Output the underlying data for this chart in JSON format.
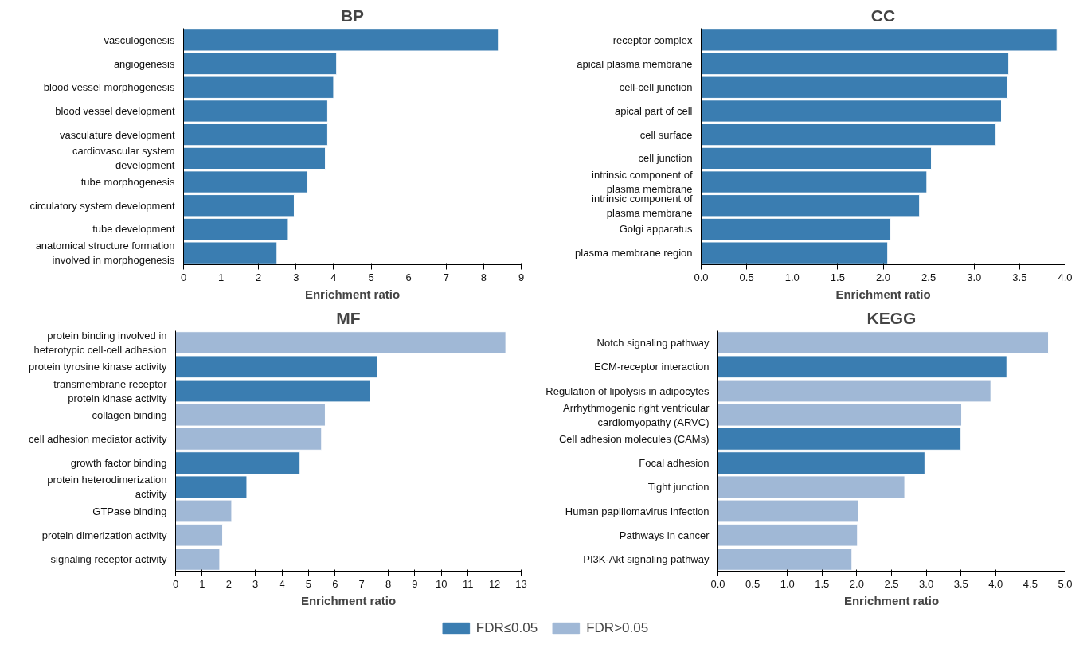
{
  "chart_data": [
    {
      "type": "bar",
      "orientation": "horizontal",
      "title": "BP",
      "xlabel": "Enrichment ratio",
      "categories": [
        "vasculogenesis",
        "angiogenesis",
        "blood vessel morphogenesis",
        "blood vessel development",
        "vasculature development",
        "cardiovascular system\ndevelopment",
        "tube morphogenesis",
        "circulatory system development",
        "tube development",
        "anatomical structure formation\ninvolved in morphogenesis"
      ],
      "series": [
        {
          "color": "#3a7db1",
          "values": [
            8.39,
            4.08,
            4.0,
            3.84,
            3.84,
            3.78,
            3.31,
            2.95,
            2.79,
            2.49
          ]
        }
      ],
      "xlim": [
        0,
        9
      ],
      "xticks": [
        0,
        1,
        2,
        3,
        4,
        5,
        6,
        7,
        8,
        9
      ],
      "grid": false,
      "legend": false
    },
    {
      "type": "bar",
      "orientation": "horizontal",
      "title": "CC",
      "xlabel": "Enrichment ratio",
      "categories": [
        "receptor complex",
        "apical plasma membrane",
        "cell-cell junction",
        "apical part of cell",
        "cell surface",
        "cell junction",
        "intrinsic component of\nplasma membrane",
        "intrinsic component of\nplasma membrane",
        "Golgi apparatus",
        "plasma membrane region"
      ],
      "series": [
        {
          "color": "#3a7db1",
          "values": [
            3.91,
            3.38,
            3.37,
            3.3,
            3.24,
            2.53,
            2.48,
            2.4,
            2.08,
            2.05
          ]
        }
      ],
      "xlim": [
        0,
        4
      ],
      "xticks": [
        {
          "value": 0,
          "label": "0.0"
        },
        {
          "value": 0.5,
          "label": "0.5"
        },
        {
          "value": 1,
          "label": "1.0"
        },
        {
          "value": 1.5,
          "label": "1.5"
        },
        {
          "value": 2,
          "label": "2.0"
        },
        {
          "value": 2.5,
          "label": "2.5"
        },
        {
          "value": 3,
          "label": "3.0"
        },
        {
          "value": 3.5,
          "label": "3.5"
        },
        {
          "value": 4,
          "label": "4.0"
        }
      ],
      "grid": false,
      "legend": false
    },
    {
      "type": "bar",
      "orientation": "horizontal",
      "title": "MF",
      "xlabel": "Enrichment ratio",
      "categories": [
        "protein binding involved in\nheterotypic cell-cell adhesion",
        "protein tyrosine kinase activity",
        "transmembrane receptor\nprotein kinase activity",
        "collagen binding",
        "cell adhesion mediator activity",
        "growth factor binding",
        "protein heterodimerization\nactivity",
        "GTPase binding",
        "protein dimerization activity",
        "signaling receptor activity"
      ],
      "series": [
        {
          "color": "#3a7db1",
          "values": [
            null,
            7.58,
            7.32,
            null,
            null,
            4.68,
            2.68,
            null,
            null,
            null
          ]
        },
        {
          "color": "#a0b8d6",
          "values": [
            12.42,
            null,
            null,
            5.63,
            5.49,
            null,
            null,
            2.11,
            1.77,
            1.66
          ]
        }
      ],
      "xlim": [
        0,
        13
      ],
      "xticks": [
        0,
        1,
        2,
        3,
        4,
        5,
        6,
        7,
        8,
        9,
        10,
        11,
        12,
        13
      ],
      "grid": false,
      "legend": false
    },
    {
      "type": "bar",
      "orientation": "horizontal",
      "title": "KEGG",
      "xlabel": "Enrichment ratio",
      "categories": [
        "Notch signaling pathway",
        "ECM-receptor interaction",
        "Regulation of lipolysis in adipocytes",
        "Arrhythmogenic right ventricular\ncardiomyopathy (ARVC)",
        "Cell adhesion molecules (CAMs)",
        "Focal adhesion",
        "Tight junction",
        "Human papillomavirus infection",
        "Pathways in cancer",
        "PI3K-Akt signaling pathway"
      ],
      "series": [
        {
          "name": "FDR≤0.05",
          "color": "#3a7db1",
          "values": [
            null,
            4.16,
            null,
            null,
            3.5,
            2.98,
            null,
            null,
            null,
            null
          ]
        },
        {
          "name": "FDR>0.05",
          "color": "#a0b8d6",
          "values": [
            4.76,
            null,
            3.93,
            3.51,
            null,
            null,
            2.69,
            2.02,
            2.01,
            1.93
          ]
        }
      ],
      "xlim": [
        0,
        5
      ],
      "xticks": [
        {
          "value": 0,
          "label": "0.0"
        },
        {
          "value": 0.5,
          "label": "0.5"
        },
        {
          "value": 1,
          "label": "1.0"
        },
        {
          "value": 1.5,
          "label": "1.5"
        },
        {
          "value": 2,
          "label": "2.0"
        },
        {
          "value": 2.5,
          "label": "2.5"
        },
        {
          "value": 3,
          "label": "3.0"
        },
        {
          "value": 3.5,
          "label": "3.5"
        },
        {
          "value": 4,
          "label": "4.0"
        },
        {
          "value": 4.5,
          "label": "4.5"
        },
        {
          "value": 5,
          "label": "5.0"
        }
      ],
      "grid": false,
      "legend": "bottom"
    }
  ]
}
